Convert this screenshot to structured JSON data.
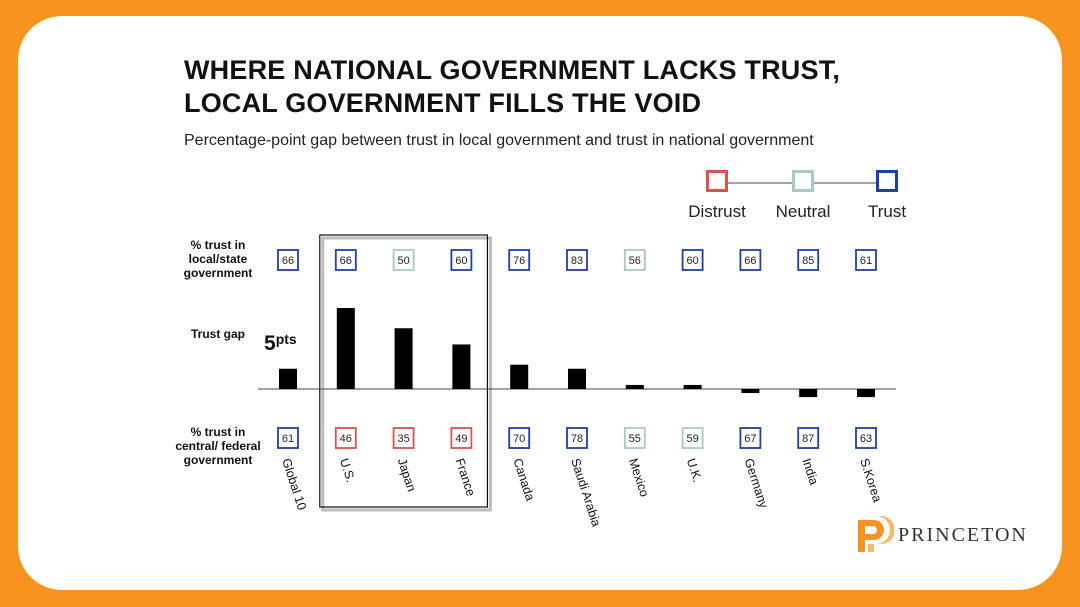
{
  "title_line1": "WHERE NATIONAL GOVERNMENT LACKS TRUST,",
  "title_line2": "LOCAL GOVERNMENT FILLS THE VOID",
  "subtitle": "Percentage-point gap between trust in local government and trust in national government",
  "legend": [
    {
      "label": "Distrust",
      "color": "#d9534f"
    },
    {
      "label": "Neutral",
      "color": "#a9c8c8"
    },
    {
      "label": "Trust",
      "color": "#1f3fa6"
    }
  ],
  "row_labels": {
    "local": "% trust in local/state government",
    "gap": "Trust gap",
    "national": "% trust in central/ federal government"
  },
  "gap_callout": {
    "value": "5",
    "unit": "pts"
  },
  "logo_text": "PRINCETON",
  "chart_data": {
    "type": "bar",
    "title": "WHERE NATIONAL GOVERNMENT LACKS TRUST, LOCAL GOVERNMENT FILLS THE VOID",
    "subtitle": "Percentage-point gap between trust in local government and trust in national government",
    "categories": [
      "Global 10",
      "U.S.",
      "Japan",
      "France",
      "Canada",
      "Saudi Arabia",
      "Mexico",
      "U.K.",
      "Germany",
      "India",
      "S.Korea"
    ],
    "local_trust": [
      66,
      66,
      50,
      60,
      76,
      83,
      56,
      60,
      66,
      85,
      61
    ],
    "local_status": [
      "trust",
      "trust",
      "neutral",
      "trust",
      "trust",
      "trust",
      "neutral",
      "trust",
      "trust",
      "trust",
      "trust"
    ],
    "national_trust": [
      61,
      46,
      35,
      49,
      70,
      78,
      55,
      59,
      67,
      87,
      63
    ],
    "national_status": [
      "trust",
      "distrust",
      "distrust",
      "distrust",
      "trust",
      "trust",
      "neutral",
      "neutral",
      "trust",
      "trust",
      "trust"
    ],
    "gap": [
      5,
      20,
      15,
      11,
      6,
      5,
      1,
      1,
      -1,
      -2,
      -2
    ],
    "highlighted": [
      "U.S.",
      "Japan",
      "France"
    ],
    "colors": {
      "distrust": "#d9534f",
      "neutral": "#a9c8c8",
      "trust": "#1f3fa6",
      "bar": "#000000"
    }
  }
}
